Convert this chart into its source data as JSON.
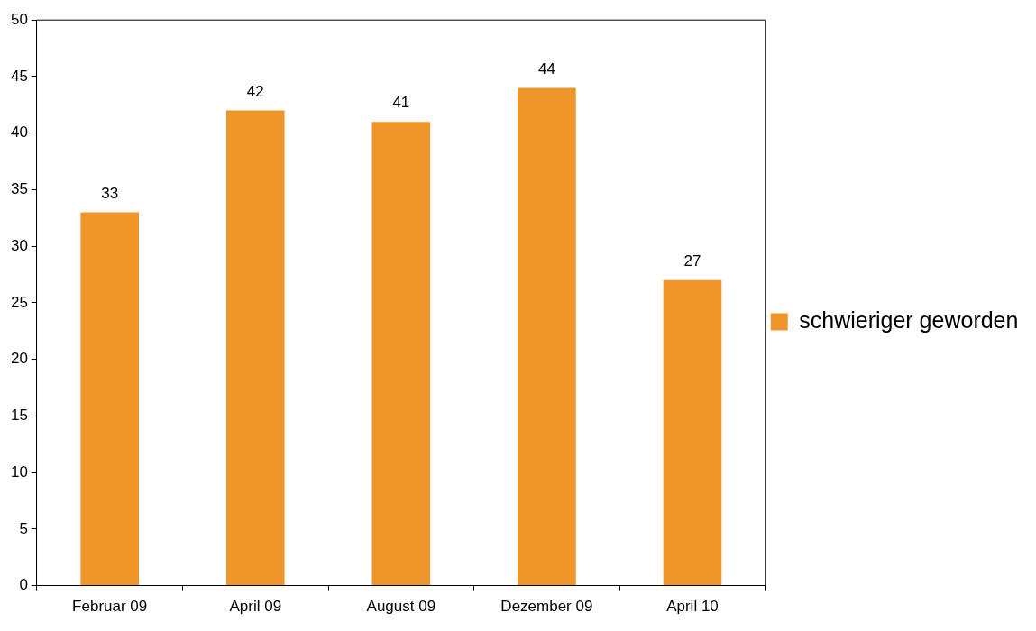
{
  "chart_data": {
    "type": "bar",
    "categories": [
      "Februar 09",
      "April 09",
      "August 09",
      "Dezember 09",
      "April 10"
    ],
    "series": [
      {
        "name": "schwieriger geworden",
        "color": "#f0952a",
        "values": [
          33,
          42,
          41,
          44,
          27
        ]
      }
    ],
    "ylim": [
      0,
      50
    ],
    "yticks": [
      0,
      5,
      10,
      15,
      20,
      25,
      30,
      35,
      40,
      45,
      50
    ],
    "data_labels": true,
    "legend": "right",
    "grid": false
  }
}
